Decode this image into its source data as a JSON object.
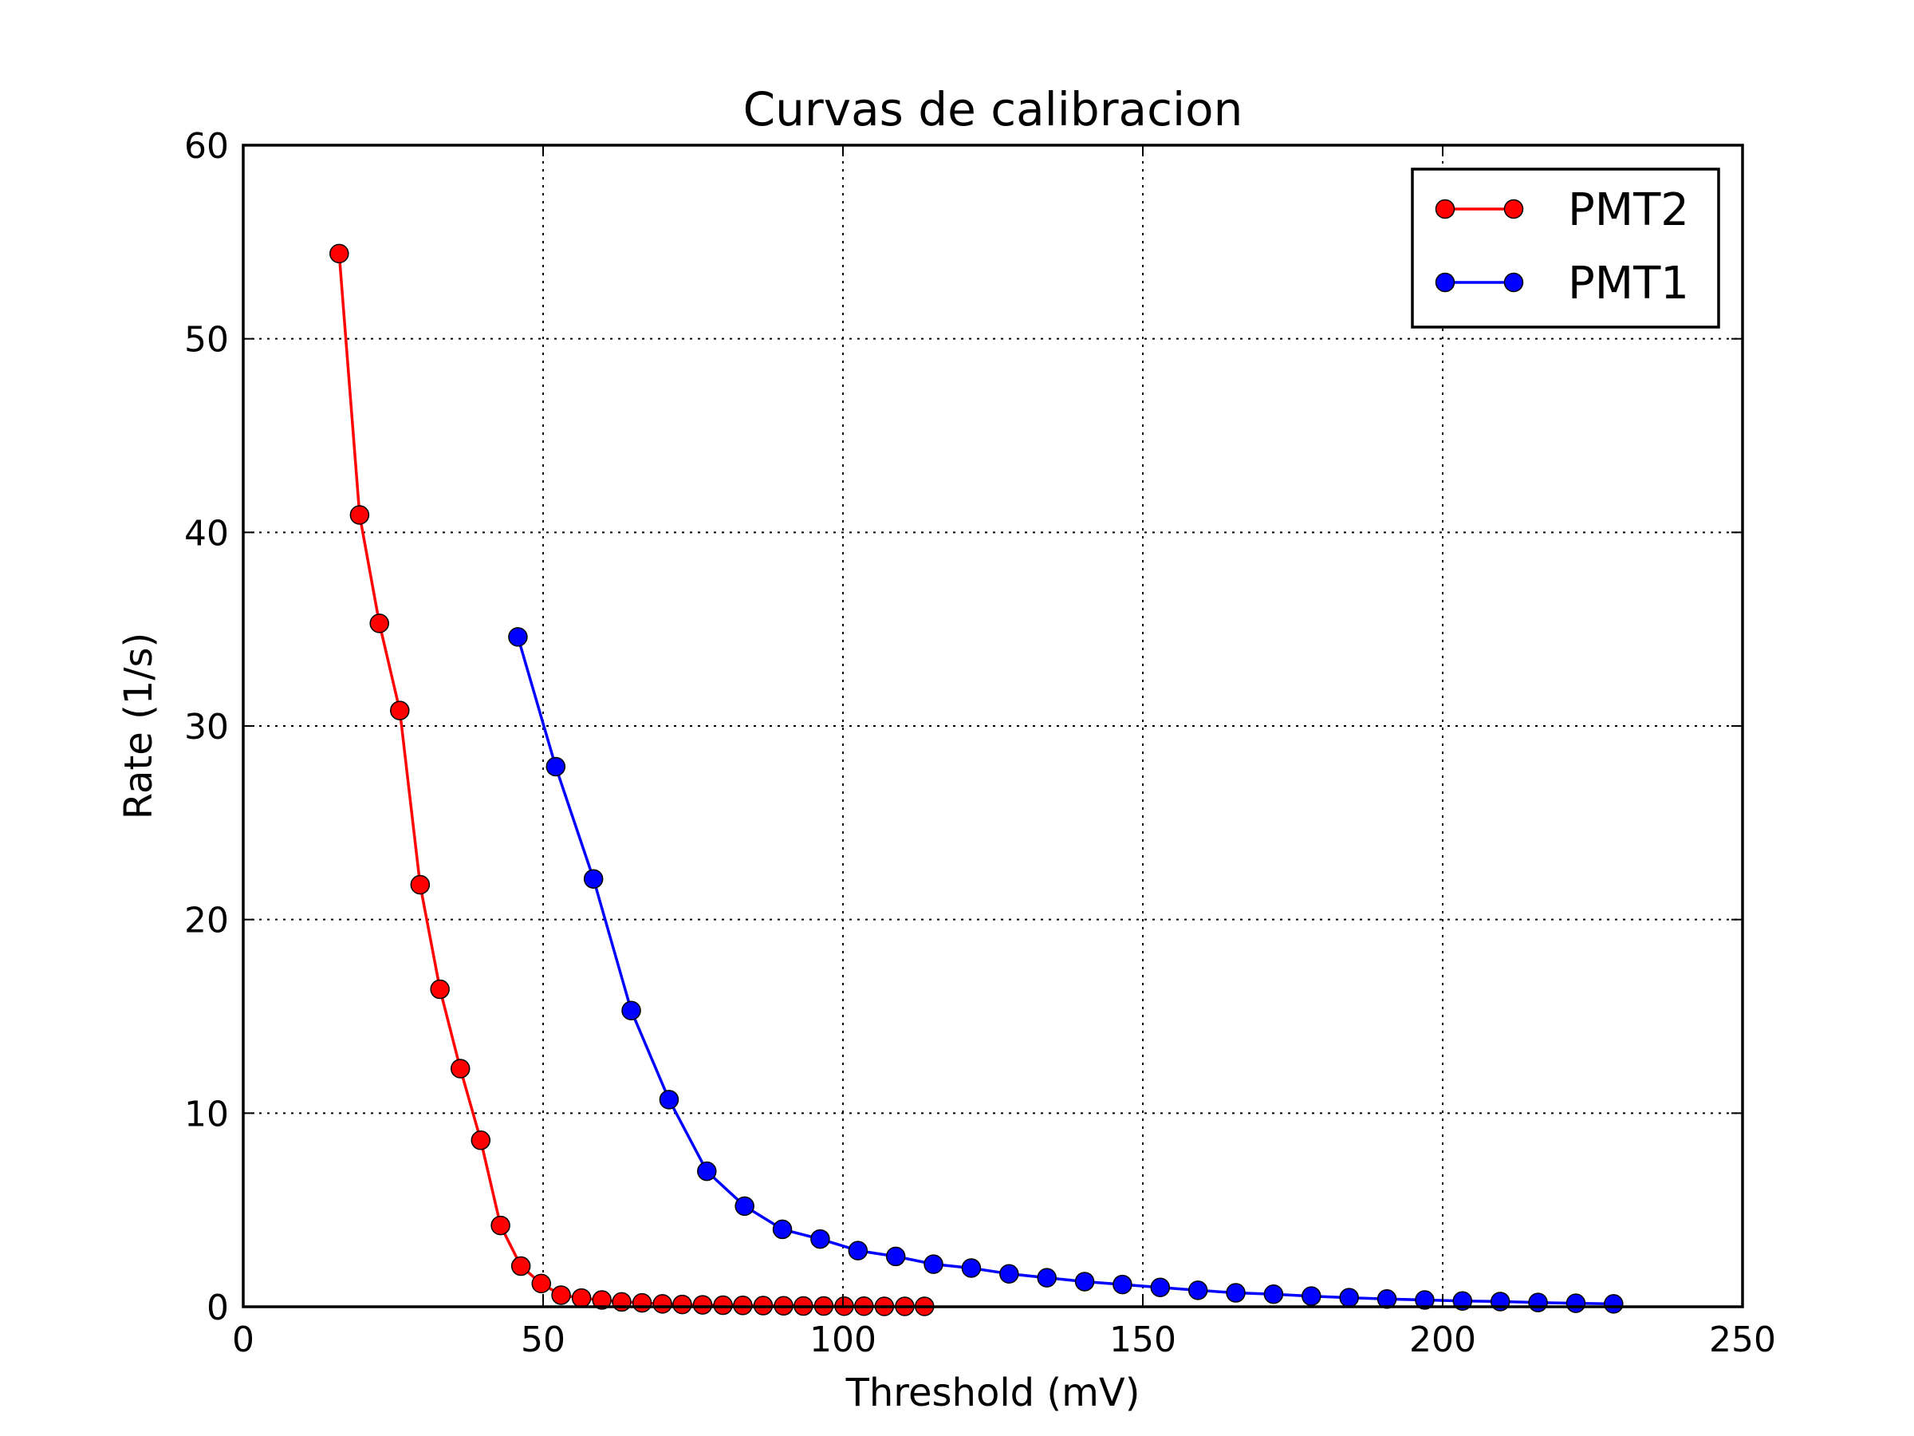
{
  "chart_data": {
    "type": "line",
    "title": "Curvas de calibracion",
    "xlabel": "Threshold (mV)",
    "ylabel": "Rate (1/s)",
    "xlim": [
      0,
      250
    ],
    "ylim": [
      0,
      60
    ],
    "xticks": [
      0,
      50,
      100,
      150,
      200,
      250
    ],
    "yticks": [
      0,
      10,
      20,
      30,
      40,
      50,
      60
    ],
    "grid": true,
    "legend_position": "top-right",
    "series": [
      {
        "name": "PMT2",
        "color": "#ff0000",
        "x": [
          16,
          19.4,
          22.7,
          26.1,
          29.5,
          32.8,
          36.2,
          39.6,
          42.9,
          46.3,
          49.7,
          53.0,
          56.4,
          59.8,
          63.1,
          66.5,
          69.9,
          73.2,
          76.6,
          80.0,
          83.3,
          86.7,
          90.1,
          93.4,
          96.8,
          100.2,
          103.5,
          106.9,
          110.3,
          113.6
        ],
        "y": [
          54.4,
          40.9,
          35.3,
          30.8,
          21.8,
          16.4,
          12.3,
          8.6,
          4.2,
          2.1,
          1.2,
          0.6,
          0.45,
          0.35,
          0.25,
          0.2,
          0.15,
          0.12,
          0.1,
          0.08,
          0.07,
          0.06,
          0.05,
          0.04,
          0.04,
          0.03,
          0.03,
          0.02,
          0.02,
          0.02
        ]
      },
      {
        "name": "PMT1",
        "color": "#0000ff",
        "x": [
          45.8,
          52.1,
          58.4,
          64.7,
          71.0,
          77.3,
          83.6,
          89.9,
          96.2,
          102.5,
          108.8,
          115.1,
          121.4,
          127.7,
          134.0,
          140.3,
          146.6,
          152.9,
          159.2,
          165.5,
          171.8,
          178.1,
          184.4,
          190.7,
          197.0,
          203.3,
          209.6,
          215.9,
          222.2,
          228.5
        ],
        "y": [
          34.6,
          27.9,
          22.1,
          15.3,
          10.7,
          7.0,
          5.2,
          4.0,
          3.5,
          2.9,
          2.6,
          2.2,
          2.0,
          1.7,
          1.5,
          1.3,
          1.15,
          1.0,
          0.85,
          0.72,
          0.65,
          0.55,
          0.47,
          0.4,
          0.35,
          0.3,
          0.27,
          0.22,
          0.18,
          0.15
        ]
      }
    ]
  }
}
